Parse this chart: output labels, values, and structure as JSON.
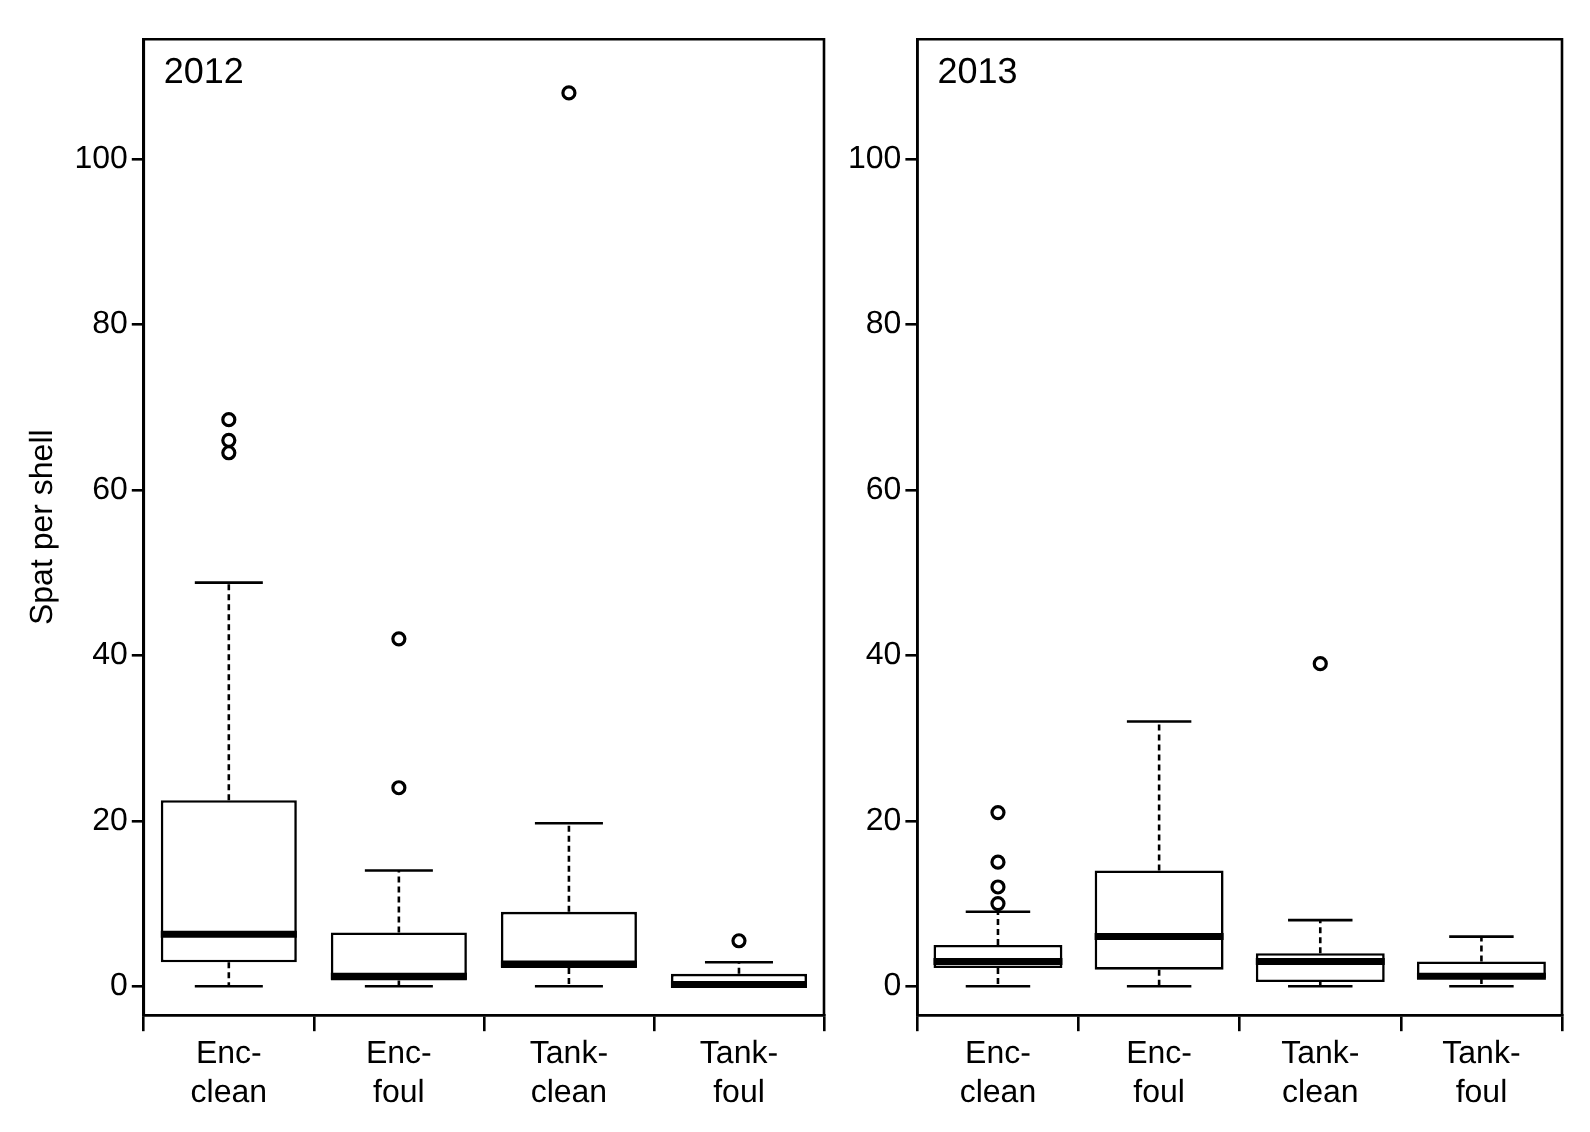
{
  "chart_data": [
    {
      "type": "box",
      "title": "2012",
      "ylabel": "Spat per shell",
      "categories": [
        "Enc-clean",
        "Enc-foul",
        "Tank-clean",
        "Tank-foul"
      ],
      "boxes": [
        {
          "low": 0,
          "q1": 2.9,
          "median": 6.3,
          "q3": 22.5,
          "high": 48.8,
          "outliers": [
            64.5,
            66,
            68.5
          ]
        },
        {
          "low": 0,
          "q1": 0.7,
          "median": 1.2,
          "q3": 6.5,
          "high": 14,
          "outliers": [
            24,
            42
          ]
        },
        {
          "low": 0,
          "q1": 2.2,
          "median": 2.7,
          "q3": 9,
          "high": 19.7,
          "outliers": [
            108
          ]
        },
        {
          "low": 0,
          "q1": 0,
          "median": 0.2,
          "q3": 1.5,
          "high": 2.9,
          "outliers": [
            5.5
          ]
        }
      ],
      "ylim": [
        -3.5,
        114.5
      ],
      "yticks": [
        0,
        20,
        40,
        60,
        80,
        100
      ],
      "grid": false
    },
    {
      "type": "box",
      "title": "2013",
      "categories": [
        "Enc-clean",
        "Enc-foul",
        "Tank-clean",
        "Tank-foul"
      ],
      "boxes": [
        {
          "low": 0,
          "q1": 2.2,
          "median": 3,
          "q3": 5,
          "high": 9,
          "outliers": [
            10,
            12,
            15,
            21
          ]
        },
        {
          "low": 0,
          "q1": 2,
          "median": 6,
          "q3": 14,
          "high": 32
        },
        {
          "low": 0,
          "q1": 0.5,
          "median": 3,
          "q3": 4,
          "high": 8,
          "outliers": [
            39
          ]
        },
        {
          "low": 0,
          "q1": 1,
          "median": 1.2,
          "q3": 3,
          "high": 6
        }
      ],
      "ylim": [
        -3.5,
        114.5
      ],
      "yticks": [
        0,
        20,
        40,
        60,
        80,
        100
      ],
      "grid": false
    }
  ]
}
